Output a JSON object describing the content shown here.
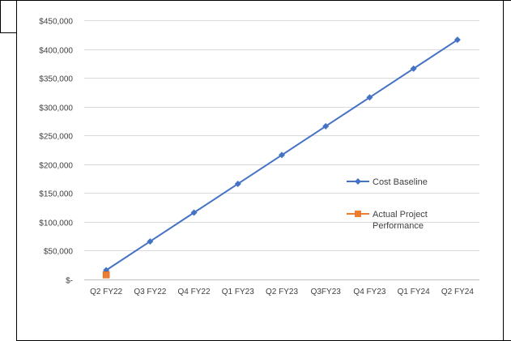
{
  "chart_data": {
    "type": "line",
    "categories": [
      "Q2 FY22",
      "Q3 FY22",
      "Q4 FY22",
      "Q1 FY23",
      "Q2 FY23",
      "Q3FY23",
      "Q4 FY23",
      "Q1 FY24",
      "Q2 FY24"
    ],
    "series": [
      {
        "name": "Cost Baseline",
        "values": [
          16000,
          66000,
          116000,
          166000,
          216000,
          266000,
          316000,
          366000,
          416000
        ],
        "color": "#4472C4",
        "marker": "diamond"
      },
      {
        "name": "Actual Project Performance",
        "values": [
          8000,
          null,
          null,
          null,
          null,
          null,
          null,
          null,
          null
        ],
        "color": "#ED7D31",
        "marker": "square"
      }
    ],
    "ylim": [
      0,
      450000
    ],
    "yticks": [
      0,
      50000,
      100000,
      150000,
      200000,
      250000,
      300000,
      350000,
      400000,
      450000
    ],
    "ytick_labels": [
      "$-",
      "$50,000",
      "$100,000",
      "$150,000",
      "$200,000",
      "$250,000",
      "$300,000",
      "$350,000",
      "$400,000",
      "$450,000"
    ],
    "grid": true,
    "legend": {
      "placement": "right",
      "entries": [
        {
          "lines": [
            "Cost Baseline"
          ]
        },
        {
          "lines": [
            "Actual Project",
            "Performance"
          ]
        }
      ]
    }
  }
}
